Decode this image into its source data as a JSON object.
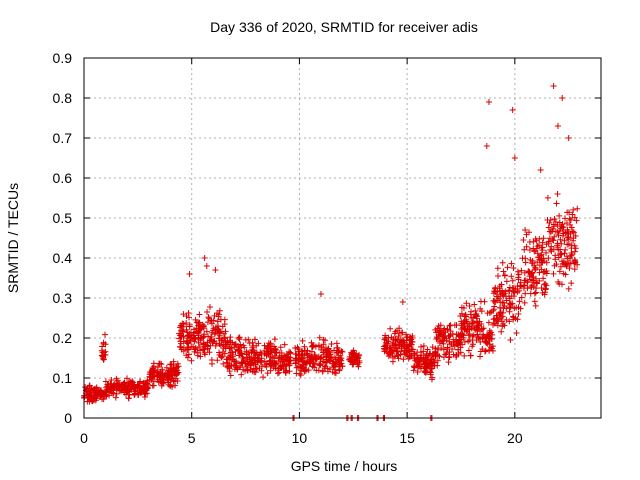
{
  "chart_data": {
    "type": "scatter",
    "title": "Day 336 of 2020, SRMTID for receiver adis",
    "xlabel": "GPS time / hours",
    "ylabel": "SRMTID / TECUs",
    "xlim": [
      0,
      24
    ],
    "ylim": [
      0,
      0.9
    ],
    "x_ticks": [
      0,
      5,
      10,
      15,
      20
    ],
    "y_ticks": [
      0,
      0.1,
      0.2,
      0.3,
      0.4,
      0.5,
      0.6,
      0.7,
      0.8,
      0.9
    ],
    "x_tick_labels": [
      "0",
      "5",
      "10",
      "15",
      "20"
    ],
    "y_tick_labels": [
      "0",
      "0.1",
      "0.2",
      "0.3",
      "0.4",
      "0.5",
      "0.6",
      "0.7",
      "0.8",
      "0.9"
    ],
    "grid": true,
    "marker": "+",
    "series": [
      {
        "name": "SRMTID",
        "color": "#dd0000",
        "segments": [
          {
            "t0": 0.0,
            "t1": 1.0,
            "base": 0.06,
            "spread": 0.03
          },
          {
            "t0": 0.8,
            "t1": 1.0,
            "base": 0.17,
            "spread": 0.05
          },
          {
            "t0": 1.0,
            "t1": 3.0,
            "base": 0.075,
            "spread": 0.03
          },
          {
            "t0": 3.0,
            "t1": 4.4,
            "base": 0.11,
            "spread": 0.04
          },
          {
            "t0": 4.4,
            "t1": 5.2,
            "base": 0.2,
            "spread": 0.08
          },
          {
            "t0": 5.2,
            "t1": 6.6,
            "base": 0.2,
            "spread": 0.09
          },
          {
            "t0": 6.6,
            "t1": 9.0,
            "base": 0.15,
            "spread": 0.07
          },
          {
            "t0": 9.0,
            "t1": 9.6,
            "base": 0.14,
            "spread": 0.05
          },
          {
            "t0": 9.8,
            "t1": 12.0,
            "base": 0.15,
            "spread": 0.06
          },
          {
            "t0": 12.3,
            "t1": 12.8,
            "base": 0.15,
            "spread": 0.03
          },
          {
            "t0": 13.9,
            "t1": 15.3,
            "base": 0.18,
            "spread": 0.06
          },
          {
            "t0": 15.3,
            "t1": 16.3,
            "base": 0.14,
            "spread": 0.05
          },
          {
            "t0": 16.3,
            "t1": 17.5,
            "base": 0.19,
            "spread": 0.08
          },
          {
            "t0": 17.5,
            "t1": 19.0,
            "base": 0.22,
            "spread": 0.09
          },
          {
            "t0": 19.0,
            "t1": 20.3,
            "base": 0.3,
            "spread": 0.12
          },
          {
            "t0": 20.3,
            "t1": 21.5,
            "base": 0.38,
            "spread": 0.13
          },
          {
            "t0": 21.5,
            "t1": 22.9,
            "base": 0.43,
            "spread": 0.15
          }
        ],
        "spikes": [
          {
            "x": 5.6,
            "y": 0.4
          },
          {
            "x": 5.7,
            "y": 0.38
          },
          {
            "x": 6.1,
            "y": 0.37
          },
          {
            "x": 4.9,
            "y": 0.36
          },
          {
            "x": 18.8,
            "y": 0.79
          },
          {
            "x": 18.7,
            "y": 0.68
          },
          {
            "x": 19.9,
            "y": 0.77
          },
          {
            "x": 20.0,
            "y": 0.65
          },
          {
            "x": 21.8,
            "y": 0.83
          },
          {
            "x": 22.2,
            "y": 0.8
          },
          {
            "x": 22.0,
            "y": 0.73
          },
          {
            "x": 21.2,
            "y": 0.62
          },
          {
            "x": 22.5,
            "y": 0.7
          },
          {
            "x": 11.0,
            "y": 0.31
          },
          {
            "x": 14.8,
            "y": 0.29
          }
        ],
        "zeros": [
          9.7,
          12.2,
          12.4,
          12.7,
          13.6,
          13.9,
          16.1
        ]
      }
    ]
  }
}
